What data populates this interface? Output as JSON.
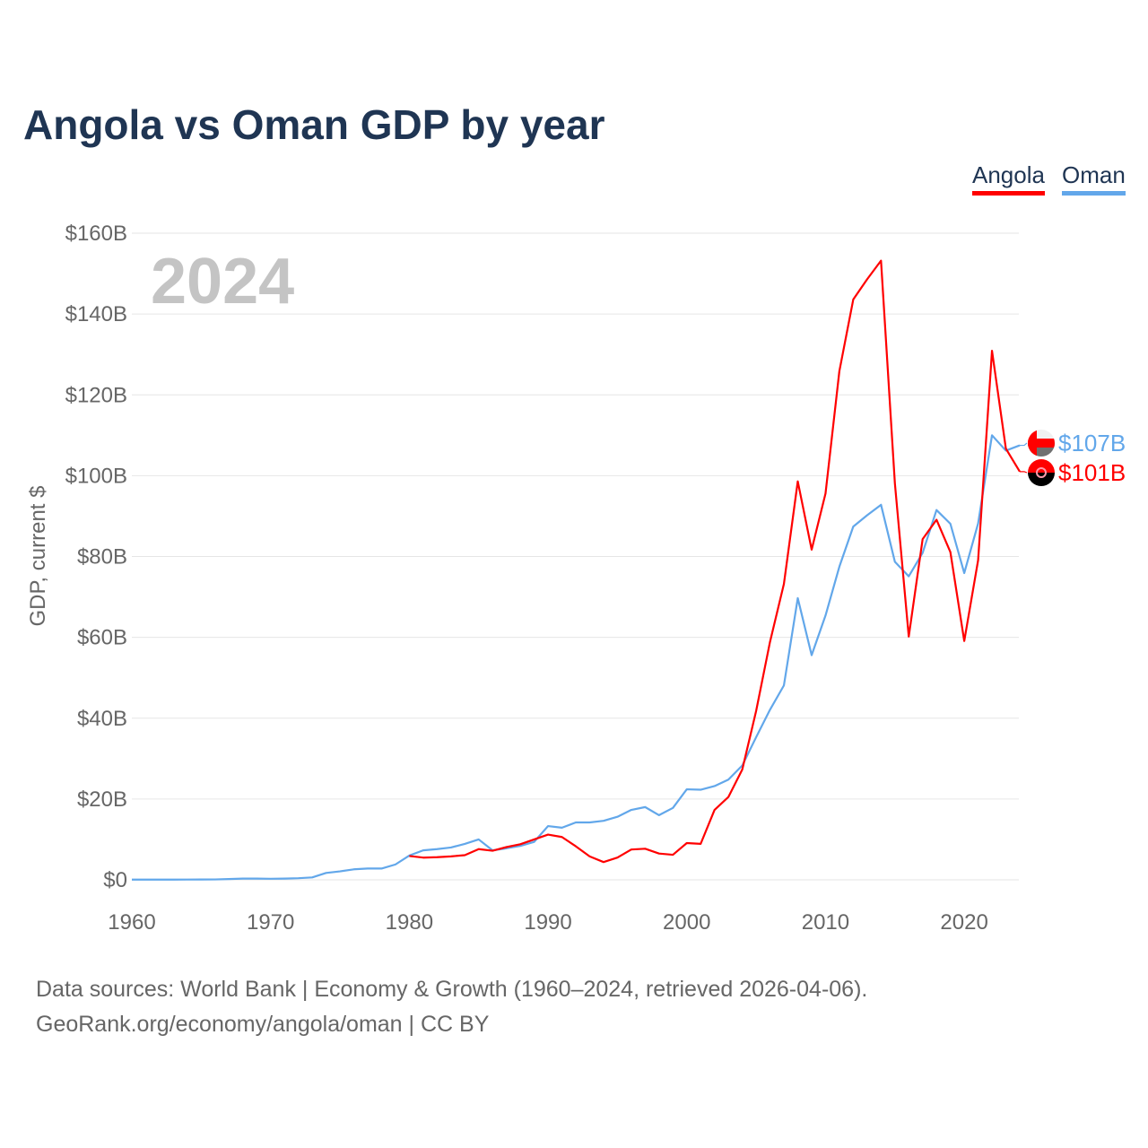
{
  "title": "Angola vs Oman GDP by year",
  "legend": {
    "angola": "Angola",
    "oman": "Oman"
  },
  "source": {
    "line1": "Data sources: World Bank | Economy & Growth (1960–2024, retrieved 2026-04-06).",
    "line2": "GeoRank.org/economy/angola/oman | CC BY"
  },
  "chart_data": {
    "type": "line",
    "title": "Angola vs Oman GDP by year",
    "ylabel": "GDP, current $",
    "year_watermark": "2024",
    "xlim": [
      1960,
      2024
    ],
    "ylim": [
      0,
      160
    ],
    "x_ticks": [
      "1960",
      "1970",
      "1980",
      "1990",
      "2000",
      "2010",
      "2020"
    ],
    "y_ticks": [
      "$0",
      "$20B",
      "$40B",
      "$60B",
      "$80B",
      "$100B",
      "$120B",
      "$140B",
      "$160B"
    ],
    "grid": true,
    "legend_position": "top-right",
    "series": [
      {
        "name": "Angola",
        "color": "#ff0000",
        "end_label": "$101B",
        "start_year": 1980,
        "values": [
          5.9,
          5.5,
          5.6,
          5.8,
          6.1,
          7.6,
          7.2,
          8.1,
          8.8,
          10.0,
          11.2,
          10.6,
          8.3,
          5.8,
          4.4,
          5.5,
          7.5,
          7.7,
          6.5,
          6.2,
          9.1,
          8.9,
          17.3,
          20.5,
          27.3,
          41.8,
          58.9,
          73.2,
          98.6,
          81.7,
          95.6,
          125.9,
          143.6,
          148.6,
          153.2,
          98.1,
          60.2,
          84.3,
          89.1,
          81.1,
          59.1,
          79.1,
          130.9,
          106.7,
          101.0
        ]
      },
      {
        "name": "Oman",
        "color": "#62a7ea",
        "end_label": "$107B",
        "start_year": 1960,
        "values": [
          0.05,
          0.05,
          0.06,
          0.06,
          0.07,
          0.08,
          0.1,
          0.2,
          0.3,
          0.3,
          0.26,
          0.3,
          0.4,
          0.6,
          1.7,
          2.1,
          2.6,
          2.8,
          2.8,
          3.8,
          6.0,
          7.3,
          7.6,
          8.0,
          8.9,
          10.0,
          7.3,
          7.8,
          8.4,
          9.4,
          13.3,
          12.9,
          14.2,
          14.2,
          14.6,
          15.6,
          17.3,
          18.0,
          16.0,
          17.8,
          22.4,
          22.3,
          23.2,
          24.8,
          28.3,
          35.3,
          42.1,
          48.1,
          69.7,
          55.6,
          65.4,
          77.5,
          87.4,
          90.2,
          92.8,
          78.7,
          75.1,
          80.9,
          91.5,
          88.1,
          75.9,
          88.2,
          110.0,
          106.2,
          107.5
        ]
      }
    ]
  }
}
